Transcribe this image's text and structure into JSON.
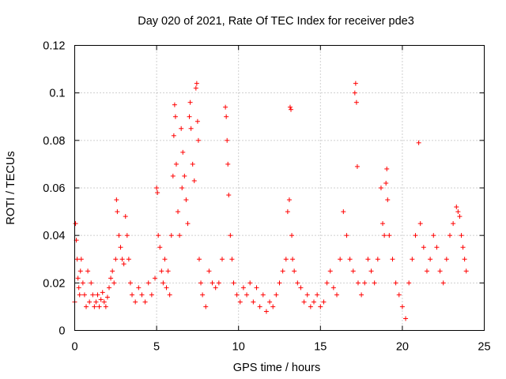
{
  "chart_data": {
    "type": "scatter",
    "title": "Day 020 of 2021, Rate Of TEC Index for receiver pde3",
    "xlabel": "GPS time / hours",
    "ylabel": "ROTI / TECUs",
    "xlim": [
      0,
      25
    ],
    "ylim": [
      0,
      0.12
    ],
    "x_ticks": [
      0,
      5,
      10,
      15,
      20,
      25
    ],
    "x_tick_labels": [
      "0",
      "5",
      "10",
      "15",
      "20",
      "25"
    ],
    "y_ticks": [
      0,
      0.02,
      0.04,
      0.06,
      0.08,
      0.1,
      0.12
    ],
    "y_tick_labels": [
      "0",
      "0.02",
      "0.04",
      "0.06",
      "0.08",
      "0.1",
      "0.12"
    ],
    "grid": true,
    "marker": "plus",
    "color": "#ff0000",
    "series": [
      {
        "points": [
          [
            0.0,
            0.012
          ],
          [
            0.05,
            0.045
          ],
          [
            0.1,
            0.038
          ],
          [
            0.15,
            0.03
          ],
          [
            0.2,
            0.022
          ],
          [
            0.25,
            0.018
          ],
          [
            0.3,
            0.015
          ],
          [
            0.35,
            0.025
          ],
          [
            0.4,
            0.03
          ],
          [
            0.5,
            0.02
          ],
          [
            0.6,
            0.015
          ],
          [
            0.7,
            0.01
          ],
          [
            0.8,
            0.025
          ],
          [
            0.9,
            0.012
          ],
          [
            1.0,
            0.02
          ],
          [
            1.1,
            0.015
          ],
          [
            1.2,
            0.01
          ],
          [
            1.3,
            0.012
          ],
          [
            1.4,
            0.015
          ],
          [
            1.5,
            0.01
          ],
          [
            1.6,
            0.013
          ],
          [
            1.7,
            0.016
          ],
          [
            1.8,
            0.012
          ],
          [
            1.9,
            0.01
          ],
          [
            2.0,
            0.014
          ],
          [
            2.1,
            0.018
          ],
          [
            2.2,
            0.022
          ],
          [
            2.3,
            0.025
          ],
          [
            2.4,
            0.02
          ],
          [
            2.5,
            0.03
          ],
          [
            2.55,
            0.055
          ],
          [
            2.6,
            0.05
          ],
          [
            2.7,
            0.04
          ],
          [
            2.8,
            0.035
          ],
          [
            2.9,
            0.03
          ],
          [
            3.0,
            0.028
          ],
          [
            3.1,
            0.048
          ],
          [
            3.2,
            0.04
          ],
          [
            3.3,
            0.03
          ],
          [
            3.4,
            0.02
          ],
          [
            3.5,
            0.015
          ],
          [
            3.7,
            0.012
          ],
          [
            3.9,
            0.018
          ],
          [
            4.1,
            0.015
          ],
          [
            4.3,
            0.012
          ],
          [
            4.5,
            0.02
          ],
          [
            4.7,
            0.015
          ],
          [
            4.9,
            0.022
          ],
          [
            5.0,
            0.06
          ],
          [
            5.05,
            0.058
          ],
          [
            5.1,
            0.04
          ],
          [
            5.2,
            0.035
          ],
          [
            5.3,
            0.025
          ],
          [
            5.4,
            0.02
          ],
          [
            5.5,
            0.03
          ],
          [
            5.6,
            0.018
          ],
          [
            5.7,
            0.025
          ],
          [
            5.8,
            0.015
          ],
          [
            5.9,
            0.04
          ],
          [
            6.0,
            0.065
          ],
          [
            6.05,
            0.082
          ],
          [
            6.1,
            0.095
          ],
          [
            6.15,
            0.09
          ],
          [
            6.2,
            0.07
          ],
          [
            6.3,
            0.05
          ],
          [
            6.4,
            0.04
          ],
          [
            6.5,
            0.085
          ],
          [
            6.55,
            0.06
          ],
          [
            6.6,
            0.075
          ],
          [
            6.7,
            0.065
          ],
          [
            6.8,
            0.055
          ],
          [
            6.9,
            0.045
          ],
          [
            7.0,
            0.09
          ],
          [
            7.05,
            0.096
          ],
          [
            7.1,
            0.085
          ],
          [
            7.2,
            0.07
          ],
          [
            7.3,
            0.063
          ],
          [
            7.4,
            0.102
          ],
          [
            7.45,
            0.104
          ],
          [
            7.5,
            0.088
          ],
          [
            7.55,
            0.08
          ],
          [
            7.6,
            0.03
          ],
          [
            7.7,
            0.02
          ],
          [
            7.8,
            0.015
          ],
          [
            8.0,
            0.01
          ],
          [
            8.2,
            0.025
          ],
          [
            8.4,
            0.02
          ],
          [
            8.6,
            0.018
          ],
          [
            8.8,
            0.02
          ],
          [
            9.0,
            0.03
          ],
          [
            9.2,
            0.094
          ],
          [
            9.25,
            0.09
          ],
          [
            9.3,
            0.08
          ],
          [
            9.35,
            0.07
          ],
          [
            9.4,
            0.057
          ],
          [
            9.5,
            0.04
          ],
          [
            9.6,
            0.03
          ],
          [
            9.7,
            0.02
          ],
          [
            9.9,
            0.015
          ],
          [
            10.1,
            0.012
          ],
          [
            10.3,
            0.018
          ],
          [
            10.5,
            0.015
          ],
          [
            10.7,
            0.02
          ],
          [
            10.9,
            0.012
          ],
          [
            11.1,
            0.018
          ],
          [
            11.3,
            0.01
          ],
          [
            11.5,
            0.015
          ],
          [
            11.7,
            0.008
          ],
          [
            11.9,
            0.012
          ],
          [
            12.1,
            0.01
          ],
          [
            12.3,
            0.015
          ],
          [
            12.5,
            0.02
          ],
          [
            12.7,
            0.025
          ],
          [
            12.9,
            0.03
          ],
          [
            13.0,
            0.05
          ],
          [
            13.1,
            0.055
          ],
          [
            13.15,
            0.094
          ],
          [
            13.2,
            0.093
          ],
          [
            13.25,
            0.04
          ],
          [
            13.3,
            0.03
          ],
          [
            13.4,
            0.025
          ],
          [
            13.6,
            0.02
          ],
          [
            13.8,
            0.018
          ],
          [
            14.0,
            0.012
          ],
          [
            14.2,
            0.015
          ],
          [
            14.4,
            0.01
          ],
          [
            14.6,
            0.012
          ],
          [
            14.8,
            0.015
          ],
          [
            15.0,
            0.01
          ],
          [
            15.2,
            0.012
          ],
          [
            15.4,
            0.02
          ],
          [
            15.6,
            0.025
          ],
          [
            15.8,
            0.018
          ],
          [
            16.0,
            0.015
          ],
          [
            16.2,
            0.03
          ],
          [
            16.4,
            0.05
          ],
          [
            16.6,
            0.04
          ],
          [
            16.8,
            0.03
          ],
          [
            17.0,
            0.025
          ],
          [
            17.1,
            0.1
          ],
          [
            17.15,
            0.104
          ],
          [
            17.2,
            0.096
          ],
          [
            17.25,
            0.069
          ],
          [
            17.3,
            0.02
          ],
          [
            17.5,
            0.015
          ],
          [
            17.7,
            0.02
          ],
          [
            17.9,
            0.03
          ],
          [
            18.1,
            0.025
          ],
          [
            18.3,
            0.02
          ],
          [
            18.5,
            0.03
          ],
          [
            18.7,
            0.06
          ],
          [
            18.8,
            0.045
          ],
          [
            18.9,
            0.04
          ],
          [
            19.0,
            0.062
          ],
          [
            19.05,
            0.068
          ],
          [
            19.1,
            0.055
          ],
          [
            19.2,
            0.04
          ],
          [
            19.4,
            0.03
          ],
          [
            19.6,
            0.02
          ],
          [
            19.8,
            0.015
          ],
          [
            20.0,
            0.01
          ],
          [
            20.2,
            0.005
          ],
          [
            20.4,
            0.02
          ],
          [
            20.6,
            0.03
          ],
          [
            20.8,
            0.04
          ],
          [
            21.0,
            0.079
          ],
          [
            21.1,
            0.045
          ],
          [
            21.3,
            0.035
          ],
          [
            21.5,
            0.025
          ],
          [
            21.7,
            0.03
          ],
          [
            21.9,
            0.04
          ],
          [
            22.1,
            0.035
          ],
          [
            22.3,
            0.025
          ],
          [
            22.5,
            0.02
          ],
          [
            22.7,
            0.03
          ],
          [
            22.9,
            0.04
          ],
          [
            23.1,
            0.045
          ],
          [
            23.3,
            0.052
          ],
          [
            23.4,
            0.05
          ],
          [
            23.5,
            0.048
          ],
          [
            23.6,
            0.04
          ],
          [
            23.7,
            0.035
          ],
          [
            23.8,
            0.03
          ],
          [
            23.9,
            0.025
          ]
        ]
      }
    ]
  }
}
